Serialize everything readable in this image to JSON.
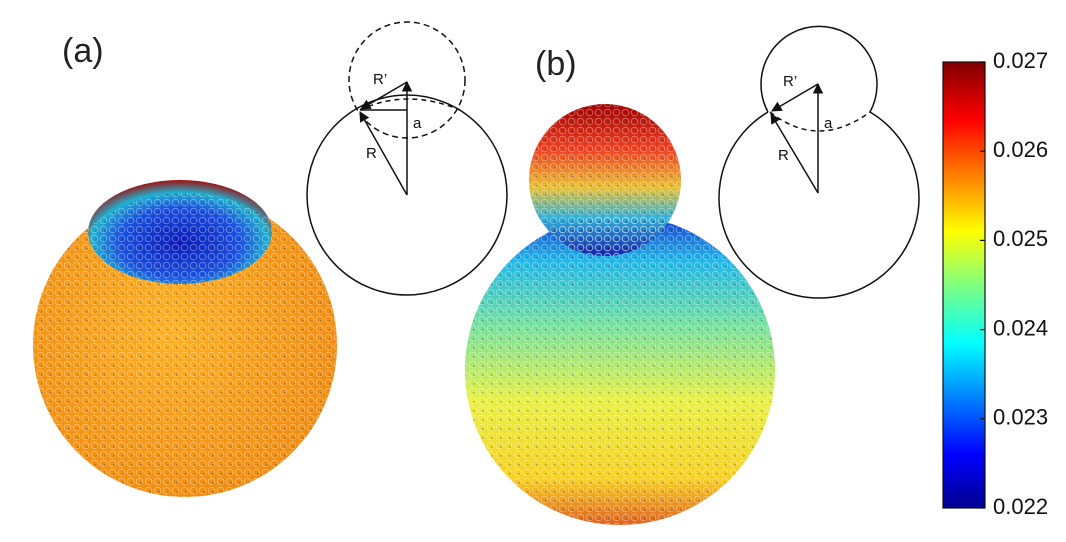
{
  "panels": [
    {
      "label": "(a)",
      "diagram": {
        "small_radius_label": "R’",
        "offset_label": "a",
        "large_radius_label": "R"
      }
    },
    {
      "label": "(b)",
      "diagram": {
        "small_radius_label": "R’",
        "offset_label": "a",
        "large_radius_label": "R"
      }
    }
  ],
  "colorbar": {
    "lim": [
      0.022,
      0.027
    ],
    "ticks": [
      0.022,
      0.023,
      0.024,
      0.025,
      0.026,
      0.027
    ]
  }
}
